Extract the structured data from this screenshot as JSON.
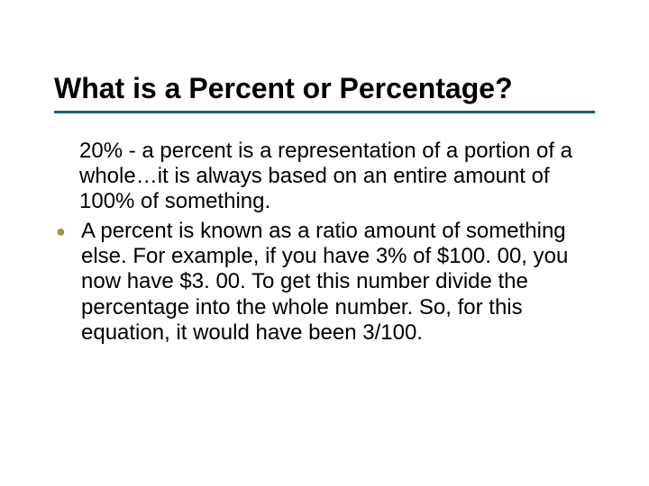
{
  "slide": {
    "title": "What is a Percent or Percentage?",
    "underline_color": "#1f5c6e",
    "bullet_color": "#999933",
    "text_color": "#000000",
    "title_color": "#000000",
    "title_fontsize": 32,
    "body_fontsize": 24,
    "background_color": "#ffffff",
    "para1": "20% - a percent is a representation of a portion of a whole…it is always based on an entire amount of 100% of something.",
    "bullet_item": "A percent is known as a ratio amount of something else. For example, if you have 3% of $100. 00, you now have $3. 00. To get this number divide the percentage into the whole number. So, for this equation, it would have been 3/100."
  }
}
